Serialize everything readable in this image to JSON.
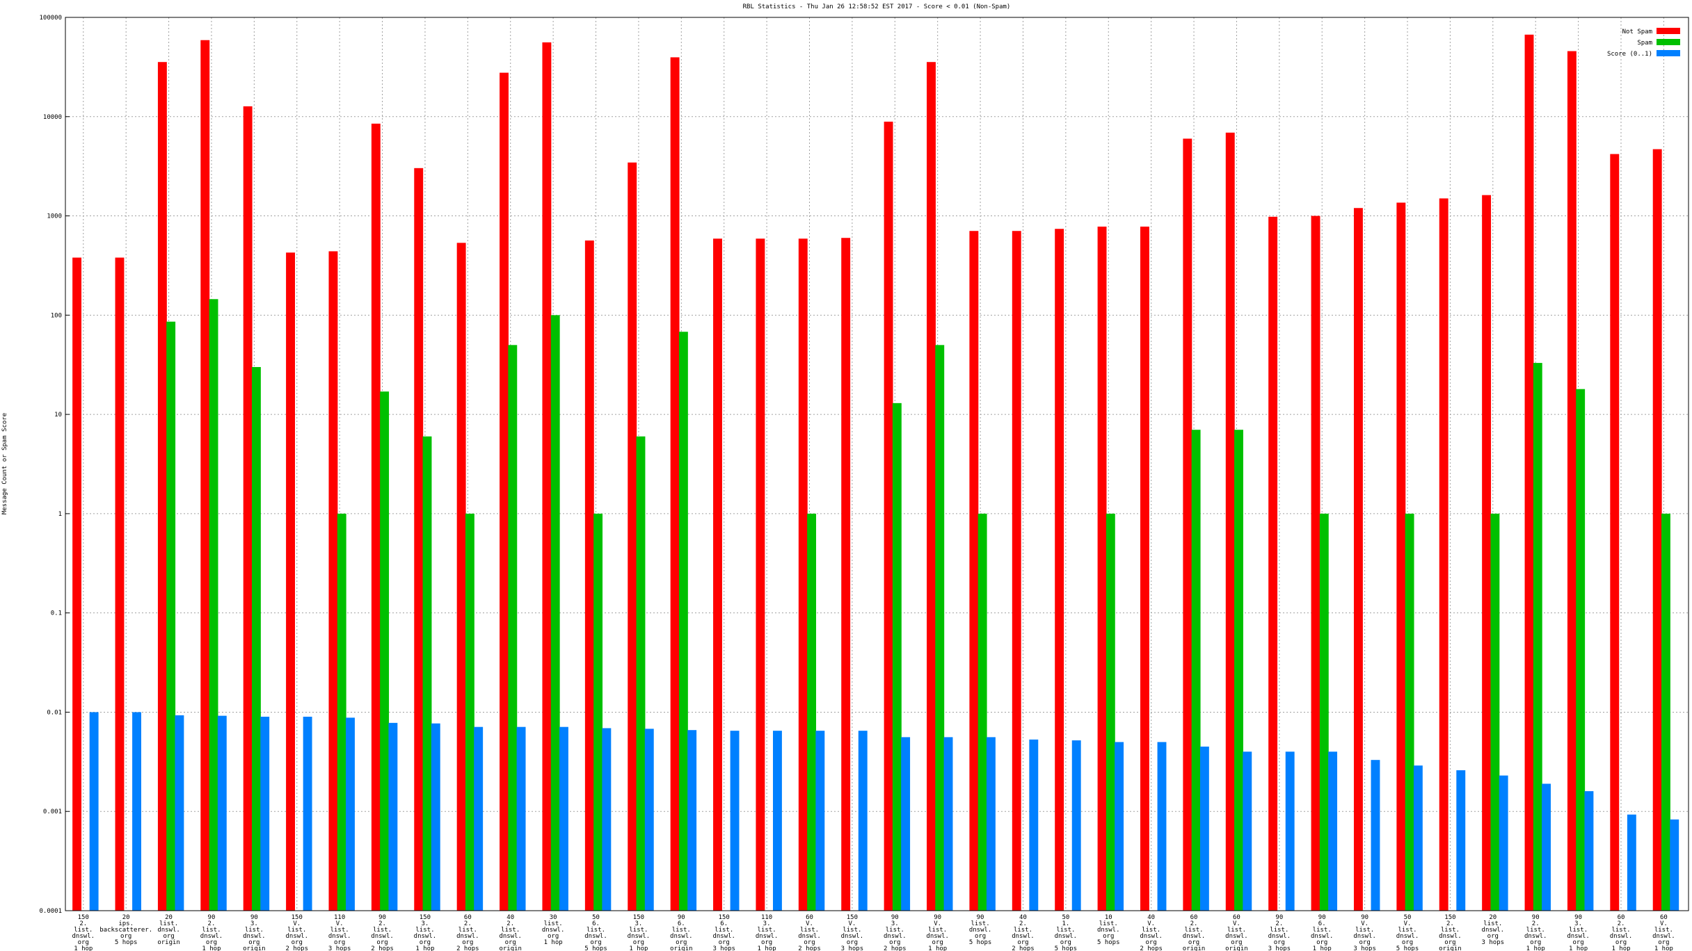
{
  "chart_data": {
    "type": "bar",
    "title": "RBL Statistics - Thu Jan 26 12:58:52 EST 2017 - Score < 0.01 (Non-Spam)",
    "y_label": "Message Count or Spam Score",
    "log_scale": true,
    "grid": true,
    "legend_position": "top-right",
    "ylim": [
      0.0001,
      100000
    ],
    "yticks": [
      0.0001,
      0.001,
      0.01,
      0.1,
      1,
      10,
      100,
      1000,
      10000,
      100000
    ],
    "categories": [
      [
        "150",
        "2.",
        "list.",
        "dnswl.",
        "org",
        "1 hop"
      ],
      [
        "20",
        "ips.",
        "backscatterer.",
        "org",
        "5 hops"
      ],
      [
        "20",
        "list.",
        "dnswl.",
        "org",
        "origin"
      ],
      [
        "90",
        "2.",
        "list.",
        "dnswl.",
        "org",
        "1 hop"
      ],
      [
        "90",
        "3.",
        "list.",
        "dnswl.",
        "org",
        "origin"
      ],
      [
        "150",
        "V.",
        "list.",
        "dnswl.",
        "org",
        "2 hops"
      ],
      [
        "110",
        "V.",
        "list.",
        "dnswl.",
        "org",
        "3 hops"
      ],
      [
        "90",
        "2.",
        "list.",
        "dnswl.",
        "org",
        "2 hops"
      ],
      [
        "150",
        "3.",
        "list.",
        "dnswl.",
        "org",
        "1 hop"
      ],
      [
        "60",
        "2.",
        "list.",
        "dnswl.",
        "org",
        "2 hops"
      ],
      [
        "40",
        "2.",
        "list.",
        "dnswl.",
        "org",
        "origin"
      ],
      [
        "30",
        "list.",
        "dnswl.",
        "org",
        "1 hop"
      ],
      [
        "50",
        "6.",
        "list.",
        "dnswl.",
        "org",
        "5 hops"
      ],
      [
        "150",
        "3.",
        "list.",
        "dnswl.",
        "org",
        "1 hop"
      ],
      [
        "90",
        "6.",
        "list.",
        "dnswl.",
        "org",
        "origin"
      ],
      [
        "150",
        "6.",
        "list.",
        "dnswl.",
        "org",
        "3 hops"
      ],
      [
        "110",
        "3.",
        "list.",
        "dnswl.",
        "org",
        "1 hop"
      ],
      [
        "60",
        "V.",
        "list.",
        "dnswl.",
        "org",
        "2 hops"
      ],
      [
        "150",
        "V.",
        "list.",
        "dnswl.",
        "org",
        "3 hops"
      ],
      [
        "90",
        "3.",
        "list.",
        "dnswl.",
        "org",
        "2 hops"
      ],
      [
        "90",
        "V.",
        "list.",
        "dnswl.",
        "org",
        "1 hop"
      ],
      [
        "90",
        "list.",
        "dnswl.",
        "org",
        "5 hops"
      ],
      [
        "40",
        "2.",
        "list.",
        "dnswl.",
        "org",
        "2 hops"
      ],
      [
        "50",
        "1.",
        "list.",
        "dnswl.",
        "org",
        "5 hops"
      ],
      [
        "10",
        "list.",
        "dnswl.",
        "org",
        "5 hops"
      ],
      [
        "40",
        "V.",
        "list.",
        "dnswl.",
        "org",
        "2 hops"
      ],
      [
        "60",
        "2.",
        "list.",
        "dnswl.",
        "org",
        "origin"
      ],
      [
        "60",
        "V.",
        "list.",
        "dnswl.",
        "org",
        "origin"
      ],
      [
        "90",
        "2.",
        "list.",
        "dnswl.",
        "org",
        "3 hops"
      ],
      [
        "90",
        "6.",
        "list.",
        "dnswl.",
        "org",
        "1 hop"
      ],
      [
        "90",
        "V.",
        "list.",
        "dnswl.",
        "org",
        "3 hops"
      ],
      [
        "50",
        "V.",
        "list.",
        "dnswl.",
        "org",
        "5 hops"
      ],
      [
        "150",
        "2.",
        "list.",
        "dnswl.",
        "org",
        "origin"
      ],
      [
        "20",
        "list.",
        "dnswl.",
        "org",
        "3 hops"
      ],
      [
        "90",
        "2.",
        "list.",
        "dnswl.",
        "org",
        "1 hop"
      ],
      [
        "90",
        "3.",
        "list.",
        "dnswl.",
        "org",
        "1 hop"
      ],
      [
        "60",
        "2.",
        "list.",
        "dnswl.",
        "org",
        "1 hop"
      ],
      [
        "60",
        "V.",
        "list.",
        "dnswl.",
        "org",
        "1 hop"
      ]
    ],
    "series": [
      {
        "name": "Not Spam",
        "color": "#ff0000",
        "values": [
          380,
          380,
          35500,
          59000,
          12700,
          427,
          440,
          8500,
          3030,
          535,
          27700,
          56000,
          565,
          3450,
          39600,
          590,
          590,
          590,
          600,
          8900,
          35500,
          705,
          705,
          740,
          780,
          780,
          6000,
          6900,
          980,
          1000,
          1200,
          1360,
          1500,
          1620,
          67000,
          45700,
          4200,
          4700
        ]
      },
      {
        "name": "Spam",
        "color": "#00c000",
        "values": [
          null,
          null,
          86,
          145,
          30,
          null,
          1,
          17,
          6,
          1,
          50,
          100,
          1,
          6,
          68,
          null,
          null,
          1,
          null,
          13,
          50,
          1,
          null,
          null,
          1,
          null,
          7,
          7,
          null,
          1,
          null,
          1,
          null,
          1,
          33,
          18,
          null,
          1
        ]
      },
      {
        "name": "Score (0..1)",
        "color": "#0080ff",
        "values": [
          0.01,
          0.01,
          0.0093,
          0.0092,
          0.009,
          0.009,
          0.0088,
          0.0078,
          0.0077,
          0.0071,
          0.0071,
          0.0071,
          0.0069,
          0.0068,
          0.0066,
          0.0065,
          0.0065,
          0.0065,
          0.0065,
          0.0056,
          0.0056,
          0.0056,
          0.0053,
          0.0052,
          0.005,
          0.005,
          0.0045,
          0.004,
          0.004,
          0.004,
          0.0033,
          0.0029,
          0.0026,
          0.0023,
          0.0019,
          0.0016,
          0.00093,
          0.00083
        ]
      }
    ]
  }
}
